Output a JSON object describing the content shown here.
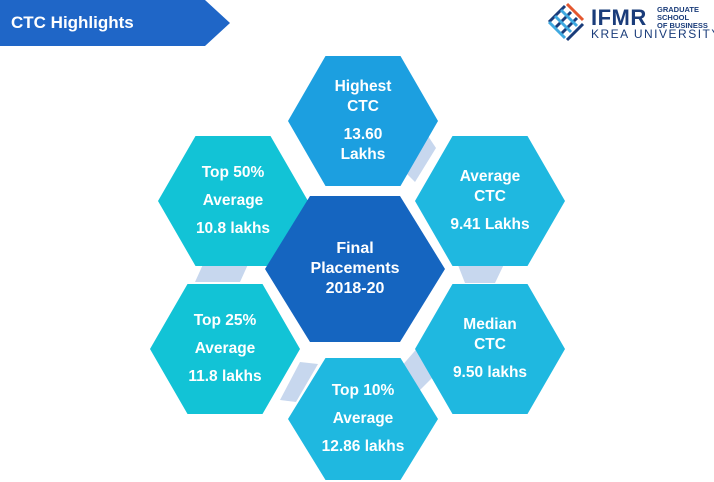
{
  "header": {
    "title": "CTC Highlights"
  },
  "logo": {
    "ifmr": "IFMR",
    "school_line1": "GRADUATE SCHOOL",
    "school_line2": "OF BUSINESS",
    "university": "KREA UNIVERSITY"
  },
  "colors": {
    "title_bar": "#1f66c7",
    "hex_dark": "#1565c0",
    "hex_light": "#12c3d6",
    "hex_mid": "#1c9fe0",
    "hex_cyan": "#1fb8e0",
    "connector": "#c7d7ee"
  },
  "center": {
    "label": "Final\nPlacements\n2018-20"
  },
  "highest": {
    "label": "Highest\nCTC",
    "value": "13.60\nLakhs"
  },
  "average": {
    "label": "Average\nCTC",
    "value": "9.41 Lakhs"
  },
  "median": {
    "label": "Median\nCTC",
    "value": "9.50 lakhs"
  },
  "top10": {
    "label": "Top 10%",
    "sub": "Average",
    "value": "12.86 lakhs"
  },
  "top25": {
    "label": "Top 25%",
    "sub": "Average",
    "value": "11.8 lakhs"
  },
  "top50": {
    "label": "Top 50%",
    "sub": "Average",
    "value": "10.8 lakhs"
  }
}
